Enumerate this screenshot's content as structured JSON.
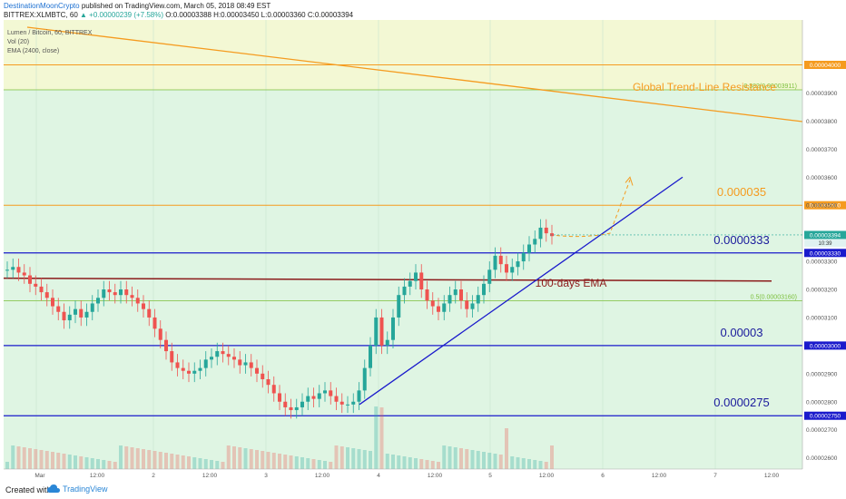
{
  "header": {
    "author": "DestinationMoonCrypto",
    "published": "published on TradingView.com, March 05, 2018 08:49 EST",
    "symbol": "BITTREX:XLMBTC, 60",
    "change": "▲ +0.00000239 (+7.58%)",
    "ohlc": "O:0.00003388 H:0.00003450 L:0.00003360 C:0.00003394"
  },
  "legend": {
    "pair": "Lumen / Bitcoin, 60, BITTREX",
    "vol": "Vol (20)",
    "ema": "EMA (2400, close)"
  },
  "footer": {
    "created_with": "Created with",
    "brand": "TradingView"
  },
  "colors": {
    "up": "#26a69a",
    "down": "#ef5350",
    "orange": "#f59b1f",
    "blue": "#1a1acc",
    "ema": "#8b1a1a",
    "fib": "#7bbf3b",
    "bg_green": "#dff5e3",
    "bg_yellow": "#f3f8d4"
  },
  "chart_data": {
    "type": "candlestick",
    "y_range": [
      2.56e-05,
      4.16e-05
    ],
    "y_ticks": [
      "0.00002600",
      "0.00002700",
      "0.00002800",
      "0.00002900",
      "0.00003100",
      "0.00003200",
      "0.00003300",
      "0.00003400",
      "0.00003500",
      "0.00003600",
      "0.00003700",
      "0.00003800",
      "0.00003900"
    ],
    "x_ticks": [
      "Mar",
      "12:00",
      "2",
      "12:00",
      "3",
      "12:00",
      "4",
      "12:00",
      "5",
      "12:00",
      "6",
      "12:00",
      "7",
      "12:00"
    ],
    "last_price_label": "0.00003394",
    "last_time_label": "10:39",
    "horizontal_levels": [
      {
        "value": 4e-05,
        "label": "0.00004000",
        "color": "orange"
      },
      {
        "value": 3.5e-05,
        "label": "0.00003500",
        "color": "orange",
        "annotation": "0.000035"
      },
      {
        "value": 3.33e-05,
        "label": "0.00003330",
        "color": "blue",
        "annotation": "0.0000333"
      },
      {
        "value": 3e-05,
        "label": "0.00003000",
        "color": "blue",
        "annotation": "0.00003"
      },
      {
        "value": 2.75e-05,
        "label": "0.00002750",
        "color": "blue",
        "annotation": "0.0000275"
      }
    ],
    "fib_levels": [
      {
        "value": 3.911e-05,
        "label": "0.382(0.00003911)"
      },
      {
        "value": 3.16e-05,
        "label": "0.5(0.00003160)"
      }
    ],
    "annotations": {
      "trendline": "Global Trend-Line Resistance",
      "ema": "100-days EMA"
    },
    "ema_value": 3.23e-05,
    "closes": [
      3.27e-05,
      3.28e-05,
      3.26e-05,
      3.25e-05,
      3.22e-05,
      3.21e-05,
      3.19e-05,
      3.17e-05,
      3.14e-05,
      3.12e-05,
      3.09e-05,
      3.11e-05,
      3.13e-05,
      3.1e-05,
      3.12e-05,
      3.15e-05,
      3.17e-05,
      3.2e-05,
      3.19e-05,
      3.18e-05,
      3.2e-05,
      3.18e-05,
      3.17e-05,
      3.15e-05,
      3.13e-05,
      3.1e-05,
      3.06e-05,
      3.02e-05,
      2.98e-05,
      2.94e-05,
      2.92e-05,
      2.91e-05,
      2.9e-05,
      2.91e-05,
      2.92e-05,
      2.95e-05,
      2.96e-05,
      2.98e-05,
      2.97e-05,
      2.96e-05,
      2.95e-05,
      2.93e-05,
      2.94e-05,
      2.92e-05,
      2.9e-05,
      2.88e-05,
      2.86e-05,
      2.83e-05,
      2.8e-05,
      2.78e-05,
      2.77e-05,
      2.78e-05,
      2.8e-05,
      2.82e-05,
      2.81e-05,
      2.83e-05,
      2.84e-05,
      2.82e-05,
      2.8e-05,
      2.79e-05,
      2.79e-05,
      2.8e-05,
      2.84e-05,
      2.92e-05,
      3e-05,
      3.1e-05,
      3e-05,
      3.02e-05,
      3.1e-05,
      3.18e-05,
      3.21e-05,
      3.23e-05,
      3.26e-05,
      3.2e-05,
      3.16e-05,
      3.14e-05,
      3.12e-05,
      3.15e-05,
      3.18e-05,
      3.2e-05,
      3.16e-05,
      3.13e-05,
      3.15e-05,
      3.18e-05,
      3.22e-05,
      3.27e-05,
      3.32e-05,
      3.29e-05,
      3.26e-05,
      3.28e-05,
      3.3e-05,
      3.33e-05,
      3.36e-05,
      3.38e-05,
      3.42e-05,
      3.4e-05,
      3.39e-05
    ]
  }
}
